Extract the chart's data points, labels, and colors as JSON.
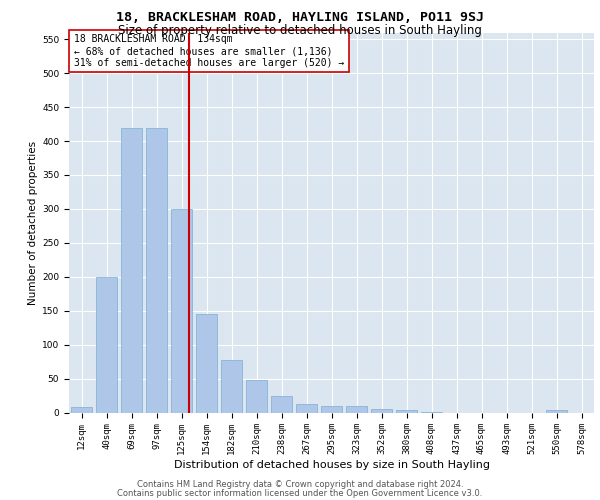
{
  "title": "18, BRACKLESHAM ROAD, HAYLING ISLAND, PO11 9SJ",
  "subtitle": "Size of property relative to detached houses in South Hayling",
  "xlabel": "Distribution of detached houses by size in South Hayling",
  "ylabel": "Number of detached properties",
  "categories": [
    "12sqm",
    "40sqm",
    "69sqm",
    "97sqm",
    "125sqm",
    "154sqm",
    "182sqm",
    "210sqm",
    "238sqm",
    "267sqm",
    "295sqm",
    "323sqm",
    "352sqm",
    "380sqm",
    "408sqm",
    "437sqm",
    "465sqm",
    "493sqm",
    "521sqm",
    "550sqm",
    "578sqm"
  ],
  "values": [
    8,
    200,
    420,
    420,
    300,
    145,
    78,
    48,
    25,
    13,
    10,
    10,
    5,
    3,
    1,
    0,
    0,
    0,
    0,
    3,
    0
  ],
  "bar_color": "#aec6e8",
  "bar_edge_color": "#7bafd4",
  "vline_color": "#cc0000",
  "annotation_text": "18 BRACKLESHAM ROAD: 134sqm\n← 68% of detached houses are smaller (1,136)\n31% of semi-detached houses are larger (520) →",
  "annotation_box_color": "#ffffff",
  "annotation_box_edge": "#cc0000",
  "ylim": [
    0,
    560
  ],
  "yticks": [
    0,
    50,
    100,
    150,
    200,
    250,
    300,
    350,
    400,
    450,
    500,
    550
  ],
  "axes_background": "#dce6f0",
  "grid_color": "#ffffff",
  "footer_line1": "Contains HM Land Registry data © Crown copyright and database right 2024.",
  "footer_line2": "Contains public sector information licensed under the Open Government Licence v3.0.",
  "title_fontsize": 9.5,
  "subtitle_fontsize": 8.5,
  "xlabel_fontsize": 8,
  "ylabel_fontsize": 7.5,
  "tick_fontsize": 6.5,
  "annotation_fontsize": 7,
  "footer_fontsize": 6
}
